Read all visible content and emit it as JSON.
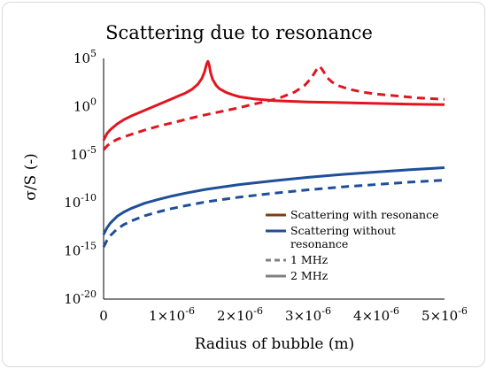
{
  "chart_data": {
    "type": "line",
    "title": "Scattering due to resonance",
    "xlabel": "Radius of bubble (m)",
    "ylabel": "σ/S (-)",
    "x_scale": "linear",
    "y_scale": "log",
    "xlim": [
      0,
      5e-06
    ],
    "ylim_log10": [
      -20,
      5
    ],
    "x_ticks": [
      {
        "value": 0,
        "label": "0"
      },
      {
        "value": 1e-06,
        "label": "1×10",
        "exp": "-6"
      },
      {
        "value": 2e-06,
        "label": "2×10",
        "exp": "-6"
      },
      {
        "value": 3e-06,
        "label": "3×10",
        "exp": "-6"
      },
      {
        "value": 4e-06,
        "label": "4×10",
        "exp": "-6"
      },
      {
        "value": 5e-06,
        "label": "5×10",
        "exp": "-6"
      }
    ],
    "y_ticks": [
      {
        "log10": 5,
        "base": "10",
        "exp": "5"
      },
      {
        "log10": 0,
        "base": "10",
        "exp": "0"
      },
      {
        "log10": -5,
        "base": "10",
        "exp": "-5"
      },
      {
        "log10": -10,
        "base": "10",
        "exp": "-10"
      },
      {
        "log10": -15,
        "base": "10",
        "exp": "-15"
      },
      {
        "log10": -20,
        "base": "10",
        "exp": "-20"
      }
    ],
    "grid": false,
    "legend_position": "bottom-right",
    "legend": [
      {
        "label": "Scattering with resonance",
        "color": "#843C0C",
        "style": "solid"
      },
      {
        "label_lines": [
          "Scattering without",
          "resonance"
        ],
        "color": "#1F4E9A",
        "style": "solid"
      },
      {
        "label": "1 MHz",
        "color": "#808080",
        "style": "dashed"
      },
      {
        "label": "2 MHz",
        "color": "#808080",
        "style": "solid"
      }
    ],
    "series": [
      {
        "color": "#E0161F",
        "dash": false,
        "points": [
          [
            0.0,
            -3.5
          ],
          [
            5e-08,
            -2.8
          ],
          [
            1e-07,
            -2.4
          ],
          [
            2e-07,
            -1.8
          ],
          [
            3e-07,
            -1.35
          ],
          [
            4e-07,
            -1.0
          ],
          [
            5e-07,
            -0.7
          ],
          [
            6e-07,
            -0.4
          ],
          [
            7e-07,
            -0.1
          ],
          [
            8e-07,
            0.2
          ],
          [
            9e-07,
            0.5
          ],
          [
            1e-06,
            0.8
          ],
          [
            1.1e-06,
            1.1
          ],
          [
            1.2e-06,
            1.4
          ],
          [
            1.3e-06,
            1.8
          ],
          [
            1.38e-06,
            2.3
          ],
          [
            1.44e-06,
            2.9
          ],
          [
            1.48e-06,
            3.6
          ],
          [
            1.51e-06,
            4.4
          ],
          [
            1.53e-06,
            4.7
          ],
          [
            1.55e-06,
            4.3
          ],
          [
            1.57e-06,
            3.5
          ],
          [
            1.6e-06,
            2.8
          ],
          [
            1.65e-06,
            2.2
          ],
          [
            1.7e-06,
            1.85
          ],
          [
            1.8e-06,
            1.45
          ],
          [
            1.9e-06,
            1.2
          ],
          [
            2e-06,
            1.0
          ],
          [
            2.2e-06,
            0.8
          ],
          [
            2.5e-06,
            0.62
          ],
          [
            3e-06,
            0.48
          ],
          [
            3.5e-06,
            0.4
          ],
          [
            4e-06,
            0.32
          ],
          [
            4.5e-06,
            0.25
          ],
          [
            5e-06,
            0.2
          ]
        ]
      },
      {
        "color": "#E0161F",
        "dash": true,
        "points": [
          [
            0.0,
            -4.5
          ],
          [
            5e-08,
            -4.1
          ],
          [
            1e-07,
            -3.8
          ],
          [
            2e-07,
            -3.4
          ],
          [
            4e-07,
            -2.9
          ],
          [
            6e-07,
            -2.45
          ],
          [
            8e-07,
            -2.05
          ],
          [
            1e-06,
            -1.7
          ],
          [
            1.2e-06,
            -1.35
          ],
          [
            1.4e-06,
            -1.0
          ],
          [
            1.6e-06,
            -0.7
          ],
          [
            1.8e-06,
            -0.4
          ],
          [
            2e-06,
            -0.1
          ],
          [
            2.2e-06,
            0.25
          ],
          [
            2.4e-06,
            0.55
          ],
          [
            2.6e-06,
            0.95
          ],
          [
            2.8e-06,
            1.5
          ],
          [
            2.95e-06,
            2.2
          ],
          [
            3.05e-06,
            3.0
          ],
          [
            3.12e-06,
            3.8
          ],
          [
            3.17e-06,
            4.2
          ],
          [
            3.22e-06,
            3.7
          ],
          [
            3.28e-06,
            3.0
          ],
          [
            3.35e-06,
            2.55
          ],
          [
            3.45e-06,
            2.15
          ],
          [
            3.6e-06,
            1.8
          ],
          [
            3.8e-06,
            1.5
          ],
          [
            4e-06,
            1.3
          ],
          [
            4.3e-06,
            1.1
          ],
          [
            4.6e-06,
            0.9
          ],
          [
            5e-06,
            0.75
          ]
        ]
      },
      {
        "color": "#1F4E9A",
        "dash": false,
        "points": [
          [
            0.0,
            -13.3
          ],
          [
            5e-08,
            -12.6
          ],
          [
            1e-07,
            -12.1
          ],
          [
            2e-07,
            -11.4
          ],
          [
            3e-07,
            -10.95
          ],
          [
            4e-07,
            -10.6
          ],
          [
            6e-07,
            -10.05
          ],
          [
            8e-07,
            -9.65
          ],
          [
            1e-06,
            -9.3
          ],
          [
            1.2e-06,
            -9.0
          ],
          [
            1.5e-06,
            -8.6
          ],
          [
            2e-06,
            -8.1
          ],
          [
            2.5e-06,
            -7.7
          ],
          [
            3e-06,
            -7.35
          ],
          [
            3.5e-06,
            -7.05
          ],
          [
            4e-06,
            -6.8
          ],
          [
            4.5e-06,
            -6.55
          ],
          [
            5e-06,
            -6.35
          ]
        ]
      },
      {
        "color": "#1F4E9A",
        "dash": true,
        "points": [
          [
            0.0,
            -14.6
          ],
          [
            5e-08,
            -13.9
          ],
          [
            1e-07,
            -13.4
          ],
          [
            2e-07,
            -12.7
          ],
          [
            3e-07,
            -12.25
          ],
          [
            4e-07,
            -11.9
          ],
          [
            6e-07,
            -11.35
          ],
          [
            8e-07,
            -10.95
          ],
          [
            1e-06,
            -10.6
          ],
          [
            1.2e-06,
            -10.3
          ],
          [
            1.5e-06,
            -9.9
          ],
          [
            2e-06,
            -9.4
          ],
          [
            2.5e-06,
            -9.0
          ],
          [
            3e-06,
            -8.65
          ],
          [
            3.5e-06,
            -8.35
          ],
          [
            4e-06,
            -8.1
          ],
          [
            4.5e-06,
            -7.85
          ],
          [
            5e-06,
            -7.65
          ]
        ]
      }
    ]
  }
}
